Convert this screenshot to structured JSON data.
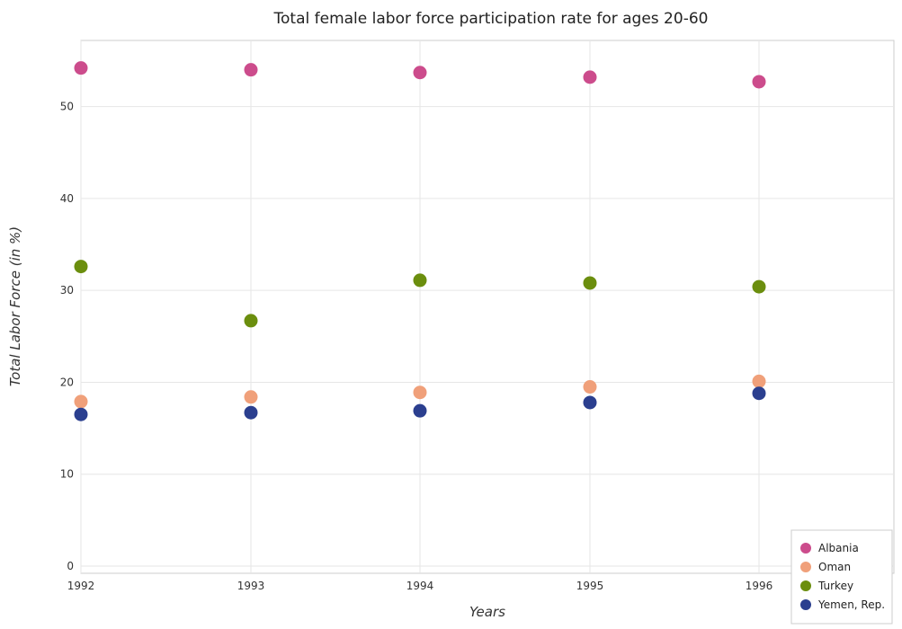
{
  "chart_data": {
    "type": "scatter",
    "title": "Total female labor force participation rate for ages 20-60",
    "xlabel": "Years",
    "ylabel": "Total Labor Force (in %)",
    "categories": [
      "1992",
      "1993",
      "1994",
      "1995",
      "1996"
    ],
    "ylim": [
      0,
      57
    ],
    "yticks": [
      0,
      10,
      20,
      30,
      40,
      50
    ],
    "grid": true,
    "legend_position": "bottom-right",
    "series": [
      {
        "name": "Albania",
        "color": "#cc4c8c",
        "values": [
          54.2,
          54.0,
          53.7,
          53.2,
          52.7
        ]
      },
      {
        "name": "Oman",
        "color": "#f0a07a",
        "values": [
          17.9,
          18.4,
          18.9,
          19.5,
          20.1
        ]
      },
      {
        "name": "Turkey",
        "color": "#6b8e0e",
        "values": [
          32.6,
          26.7,
          31.1,
          30.8,
          30.4
        ]
      },
      {
        "name": "Yemen, Rep.",
        "color": "#2b3f8f",
        "values": [
          16.5,
          16.7,
          16.9,
          17.8,
          18.8
        ]
      }
    ]
  }
}
